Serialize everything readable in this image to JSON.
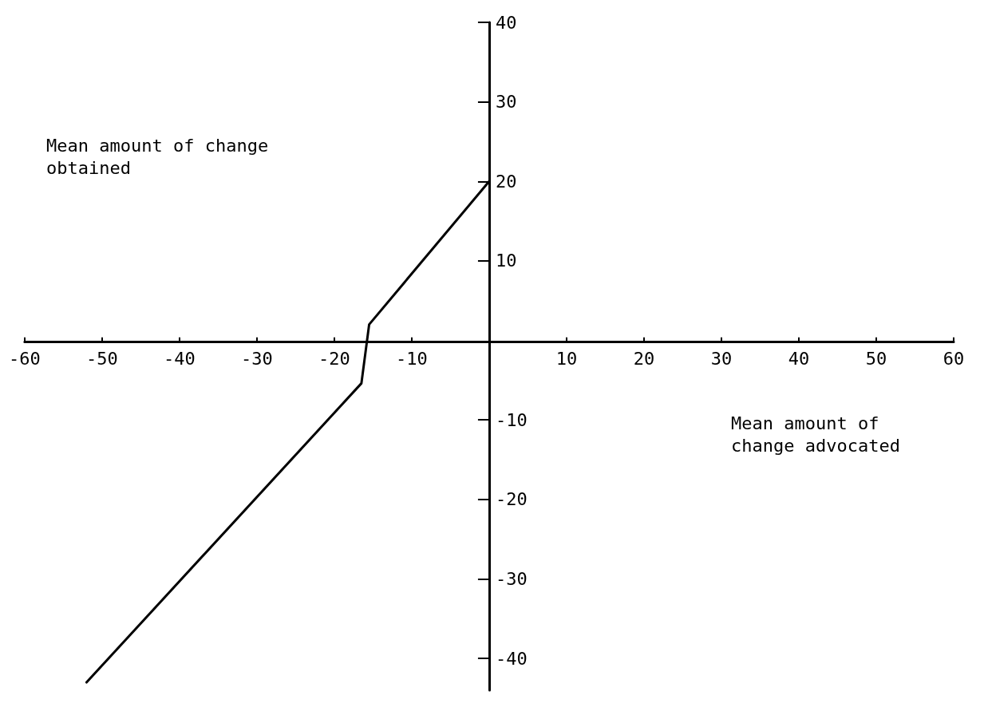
{
  "chart_data": {
    "type": "line",
    "xlabel": "Mean amount of change advocated",
    "ylabel": "Mean amount of change obtained",
    "x": [
      -52,
      -16.5,
      -15.5,
      0
    ],
    "values": [
      -43,
      -5.4,
      2,
      20
    ],
    "color": "#000000",
    "line_style": "solid",
    "xlim": [
      -60,
      60
    ],
    "xticks": [
      -60,
      -50,
      -40,
      -30,
      -20,
      -10,
      10,
      20,
      30,
      40,
      50,
      60
    ],
    "ylim": [
      -44,
      40
    ],
    "yticks": [
      -40,
      -30,
      -20,
      -10,
      10,
      20,
      30,
      40
    ]
  }
}
